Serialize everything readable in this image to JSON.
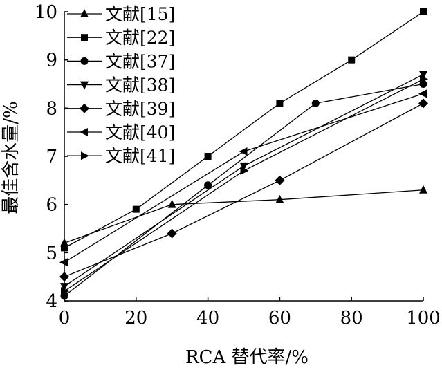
{
  "chart_data": {
    "type": "line",
    "xlabel": "RCA 替代率/%",
    "ylabel": "最佳含水量/%",
    "xlim": [
      0,
      100
    ],
    "ylim": [
      4,
      10
    ],
    "x_ticks": [
      0,
      20,
      40,
      60,
      80,
      100
    ],
    "y_ticks": [
      4,
      5,
      6,
      7,
      8,
      9,
      10
    ],
    "grid": false,
    "legend_position": "top-left",
    "series": [
      {
        "name": "文献[15]",
        "marker": "triangle-up",
        "x": [
          0,
          30,
          60,
          100
        ],
        "y": [
          5.2,
          6.0,
          6.1,
          6.3
        ]
      },
      {
        "name": "文献[22]",
        "marker": "square",
        "x": [
          0,
          20,
          40,
          60,
          80,
          100
        ],
        "y": [
          5.1,
          5.9,
          7.0,
          8.1,
          9.0,
          10.0
        ]
      },
      {
        "name": "文献[37]",
        "marker": "circle",
        "x": [
          0,
          40,
          70,
          100
        ],
        "y": [
          4.1,
          6.4,
          8.1,
          8.5
        ]
      },
      {
        "name": "文献[38]",
        "marker": "triangle-down",
        "x": [
          0,
          50,
          100
        ],
        "y": [
          4.3,
          6.8,
          8.7
        ]
      },
      {
        "name": "文献[39]",
        "marker": "diamond",
        "x": [
          0,
          30,
          60,
          100
        ],
        "y": [
          4.5,
          5.4,
          6.5,
          8.1
        ]
      },
      {
        "name": "文献[40]",
        "marker": "triangle-left",
        "x": [
          0,
          50,
          100
        ],
        "y": [
          4.8,
          7.1,
          8.3
        ]
      },
      {
        "name": "文献[41]",
        "marker": "triangle-right",
        "x": [
          0,
          50,
          100
        ],
        "y": [
          4.2,
          6.7,
          8.6
        ]
      }
    ]
  }
}
